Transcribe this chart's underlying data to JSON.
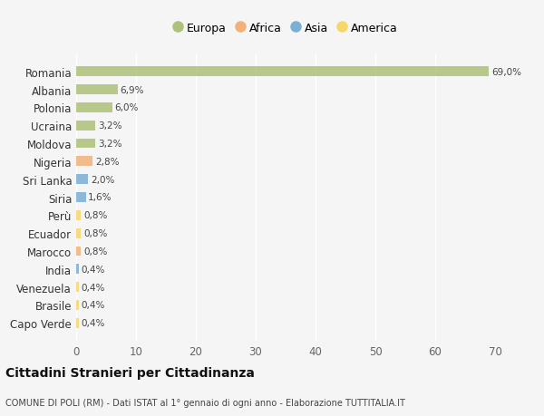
{
  "categories": [
    "Capo Verde",
    "Brasile",
    "Venezuela",
    "India",
    "Marocco",
    "Ecuador",
    "Perù",
    "Siria",
    "Sri Lanka",
    "Nigeria",
    "Moldova",
    "Ucraina",
    "Polonia",
    "Albania",
    "Romania"
  ],
  "values": [
    0.4,
    0.4,
    0.4,
    0.4,
    0.8,
    0.8,
    0.8,
    1.6,
    2.0,
    2.8,
    3.2,
    3.2,
    6.0,
    6.9,
    69.0
  ],
  "continents": [
    "America",
    "America",
    "America",
    "Asia",
    "Africa",
    "America",
    "America",
    "Asia",
    "Asia",
    "Africa",
    "Europa",
    "Europa",
    "Europa",
    "Europa",
    "Europa"
  ],
  "colors": {
    "Europa": "#adc178",
    "Africa": "#f0b27a",
    "Asia": "#7bafd4",
    "America": "#f5d76e"
  },
  "labels": [
    "0,4%",
    "0,4%",
    "0,4%",
    "0,4%",
    "0,8%",
    "0,8%",
    "0,8%",
    "1,6%",
    "2,0%",
    "2,8%",
    "3,2%",
    "3,2%",
    "6,0%",
    "6,9%",
    "69,0%"
  ],
  "legend_entries": [
    "Europa",
    "Africa",
    "Asia",
    "America"
  ],
  "legend_colors": [
    "#adc178",
    "#f0b27a",
    "#7bafd4",
    "#f5d76e"
  ],
  "title": "Cittadini Stranieri per Cittadinanza",
  "subtitle": "COMUNE DI POLI (RM) - Dati ISTAT al 1° gennaio di ogni anno - Elaborazione TUTTITALIA.IT",
  "xlim": [
    0,
    70
  ],
  "xticks": [
    0,
    10,
    20,
    30,
    40,
    50,
    60,
    70
  ],
  "background_color": "#f5f5f5",
  "grid_color": "#ffffff",
  "bar_height": 0.55
}
